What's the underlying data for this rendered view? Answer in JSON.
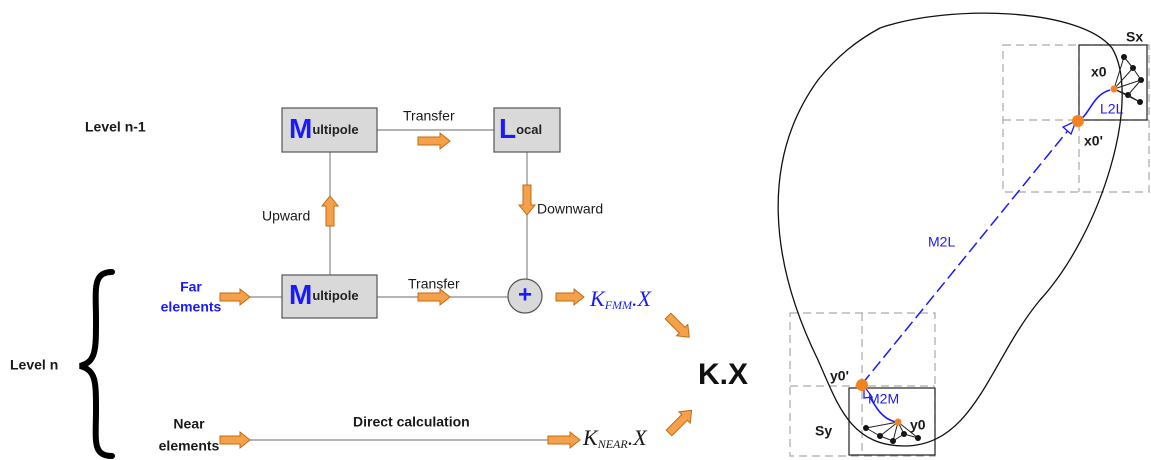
{
  "left": {
    "level_labels": [
      "Level n-1",
      "Level n"
    ],
    "boxes": [
      {
        "initial": "M",
        "rest": "ultipole"
      },
      {
        "initial": "L",
        "rest": "ocal"
      },
      {
        "initial": "M",
        "rest": "ultipole"
      }
    ],
    "edge_labels": [
      "Transfer",
      "Upward",
      "Downward",
      "Transfer",
      "Direct calculation"
    ],
    "inputs": [
      [
        "Far",
        "elements"
      ],
      [
        "Near",
        "elements"
      ]
    ],
    "sum_symbol": "+",
    "outputs": [
      {
        "base": "K",
        "subscript": "FMM",
        "suffix": ".X"
      },
      {
        "base": "K",
        "subscript": "NEAR",
        "suffix": ".X"
      }
    ],
    "result": "K.X"
  },
  "right": {
    "labels": [
      "Sx",
      "x0",
      "L2L",
      "x0'",
      "M2L",
      "y0'",
      "M2M",
      "y0",
      "Sy"
    ]
  }
}
